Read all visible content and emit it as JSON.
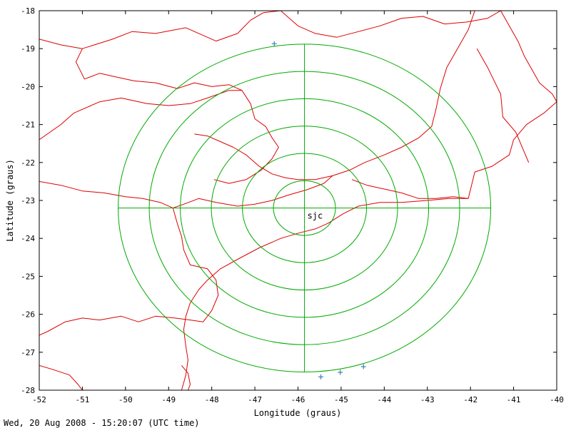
{
  "chart_data": {
    "type": "map",
    "xlabel": "Longitude (graus)",
    "ylabel": "Latitude (graus)",
    "xlim": [
      -52,
      -40
    ],
    "ylim": [
      -28,
      -18
    ],
    "x_ticks": [
      -52,
      -51,
      -50,
      -49,
      -48,
      -47,
      -46,
      -45,
      -44,
      -43,
      -42,
      -41,
      -40
    ],
    "y_ticks": [
      -18,
      -19,
      -20,
      -21,
      -22,
      -23,
      -24,
      -25,
      -26,
      -27,
      -28
    ],
    "grid": false,
    "colors": {
      "coast": "#dd0000",
      "range_rings": "#00aa00",
      "lightning": "#3b7fb5",
      "frame": "#000000"
    },
    "radar": {
      "label": "sjc",
      "lon": -45.85,
      "lat": -23.2,
      "ring_radii_deg": [
        0.72,
        1.44,
        2.16,
        2.88,
        3.6,
        4.32
      ]
    },
    "lightning_strikes": [
      {
        "lon": -46.55,
        "lat": -18.87
      },
      {
        "lon": -45.47,
        "lat": -27.65
      },
      {
        "lon": -45.02,
        "lat": -27.53
      },
      {
        "lon": -44.48,
        "lat": -27.38
      }
    ],
    "boundaries": [
      [
        [
          -52,
          -18.75
        ],
        [
          -51.5,
          -18.9
        ],
        [
          -51.0,
          -19.0
        ],
        [
          -50.3,
          -18.75
        ],
        [
          -49.85,
          -18.55
        ],
        [
          -49.3,
          -18.6
        ],
        [
          -48.6,
          -18.45
        ],
        [
          -47.9,
          -18.8
        ],
        [
          -47.4,
          -18.6
        ],
        [
          -47.1,
          -18.25
        ],
        [
          -46.8,
          -18.05
        ],
        [
          -46.4,
          -18.0
        ]
      ],
      [
        [
          -51.0,
          -19.0
        ],
        [
          -51.15,
          -19.35
        ],
        [
          -50.95,
          -19.8
        ],
        [
          -50.6,
          -19.65
        ],
        [
          -50.2,
          -19.75
        ],
        [
          -49.8,
          -19.85
        ],
        [
          -49.3,
          -19.9
        ],
        [
          -48.8,
          -20.05
        ],
        [
          -48.4,
          -19.9
        ],
        [
          -48.0,
          -20.0
        ],
        [
          -47.6,
          -19.95
        ],
        [
          -47.3,
          -20.1
        ],
        [
          -47.1,
          -20.45
        ],
        [
          -47.0,
          -20.85
        ],
        [
          -46.75,
          -21.05
        ],
        [
          -46.6,
          -21.35
        ],
        [
          -46.45,
          -21.6
        ],
        [
          -46.6,
          -21.9
        ],
        [
          -46.85,
          -22.2
        ],
        [
          -47.2,
          -22.45
        ],
        [
          -47.6,
          -22.55
        ],
        [
          -47.95,
          -22.45
        ]
      ],
      [
        [
          -52,
          -21.4
        ],
        [
          -51.5,
          -21.0
        ],
        [
          -51.2,
          -20.7
        ],
        [
          -50.6,
          -20.4
        ],
        [
          -50.1,
          -20.3
        ],
        [
          -49.5,
          -20.45
        ],
        [
          -49.0,
          -20.5
        ],
        [
          -48.5,
          -20.45
        ],
        [
          -48.1,
          -20.3
        ],
        [
          -47.6,
          -20.1
        ],
        [
          -47.3,
          -20.1
        ]
      ],
      [
        [
          -52,
          -22.5
        ],
        [
          -51.5,
          -22.6
        ],
        [
          -51.0,
          -22.75
        ],
        [
          -50.5,
          -22.8
        ],
        [
          -50.0,
          -22.9
        ],
        [
          -49.6,
          -22.95
        ],
        [
          -49.2,
          -23.05
        ],
        [
          -48.9,
          -23.2
        ],
        [
          -48.8,
          -23.6
        ],
        [
          -48.7,
          -23.95
        ],
        [
          -48.65,
          -24.3
        ],
        [
          -48.5,
          -24.7
        ],
        [
          -48.1,
          -24.8
        ],
        [
          -47.9,
          -25.1
        ],
        [
          -47.85,
          -25.5
        ],
        [
          -48.0,
          -25.9
        ],
        [
          -48.2,
          -26.2
        ],
        [
          -48.5,
          -26.15
        ],
        [
          -48.85,
          -26.1
        ],
        [
          -49.3,
          -26.05
        ],
        [
          -49.7,
          -26.2
        ],
        [
          -50.1,
          -26.05
        ],
        [
          -50.6,
          -26.15
        ],
        [
          -51.0,
          -26.1
        ],
        [
          -51.4,
          -26.2
        ],
        [
          -51.8,
          -26.45
        ],
        [
          -52,
          -26.55
        ]
      ],
      [
        [
          -52,
          -27.35
        ],
        [
          -51.7,
          -27.45
        ],
        [
          -51.3,
          -27.6
        ],
        [
          -51.1,
          -27.85
        ],
        [
          -51.0,
          -28.0
        ]
      ],
      [
        [
          -46.4,
          -18.0
        ],
        [
          -46.0,
          -18.4
        ],
        [
          -45.6,
          -18.6
        ],
        [
          -45.1,
          -18.7
        ],
        [
          -44.6,
          -18.55
        ],
        [
          -44.1,
          -18.4
        ],
        [
          -43.6,
          -18.2
        ],
        [
          -43.1,
          -18.15
        ],
        [
          -42.6,
          -18.35
        ],
        [
          -42.1,
          -18.3
        ],
        [
          -41.6,
          -18.2
        ],
        [
          -41.3,
          -18.0
        ]
      ],
      [
        [
          -41.3,
          -18.0
        ],
        [
          -41.1,
          -18.4
        ],
        [
          -40.9,
          -18.8
        ],
        [
          -40.75,
          -19.2
        ],
        [
          -40.6,
          -19.5
        ],
        [
          -40.4,
          -19.9
        ],
        [
          -40.1,
          -20.2
        ],
        [
          -40.0,
          -20.4
        ]
      ],
      [
        [
          -41.9,
          -18.0
        ],
        [
          -42.05,
          -18.5
        ],
        [
          -42.3,
          -19.0
        ],
        [
          -42.55,
          -19.5
        ],
        [
          -42.7,
          -20.05
        ],
        [
          -42.8,
          -20.6
        ],
        [
          -42.9,
          -21.05
        ],
        [
          -43.2,
          -21.35
        ],
        [
          -43.6,
          -21.6
        ],
        [
          -44.0,
          -21.8
        ],
        [
          -44.45,
          -22.0
        ],
        [
          -44.8,
          -22.2
        ],
        [
          -45.2,
          -22.35
        ],
        [
          -45.6,
          -22.45
        ],
        [
          -46.0,
          -22.45
        ],
        [
          -46.3,
          -22.4
        ],
        [
          -46.6,
          -22.3
        ],
        [
          -46.9,
          -22.1
        ],
        [
          -47.2,
          -21.8
        ],
        [
          -47.5,
          -21.6
        ],
        [
          -47.8,
          -21.45
        ],
        [
          -48.1,
          -21.3
        ],
        [
          -48.4,
          -21.25
        ]
      ],
      [
        [
          -44.75,
          -22.45
        ],
        [
          -44.4,
          -22.6
        ],
        [
          -44.0,
          -22.7
        ],
        [
          -43.6,
          -22.8
        ],
        [
          -43.2,
          -22.95
        ],
        [
          -42.8,
          -22.95
        ],
        [
          -42.4,
          -22.9
        ],
        [
          -42.05,
          -22.95
        ]
      ],
      [
        [
          -45.2,
          -22.35
        ],
        [
          -45.4,
          -22.55
        ],
        [
          -45.8,
          -22.72
        ],
        [
          -46.2,
          -22.85
        ],
        [
          -46.6,
          -23.0
        ],
        [
          -47.0,
          -23.1
        ],
        [
          -47.4,
          -23.15
        ],
        [
          -47.9,
          -23.05
        ],
        [
          -48.3,
          -22.95
        ],
        [
          -48.65,
          -23.1
        ],
        [
          -48.9,
          -23.2
        ]
      ],
      [
        [
          -40.0,
          -20.4
        ],
        [
          -40.3,
          -20.7
        ],
        [
          -40.7,
          -21.0
        ],
        [
          -41.0,
          -21.4
        ],
        [
          -41.1,
          -21.8
        ],
        [
          -41.5,
          -22.1
        ],
        [
          -41.9,
          -22.25
        ],
        [
          -42.05,
          -22.95
        ]
      ],
      [
        [
          -40.65,
          -22.0
        ],
        [
          -40.95,
          -21.2
        ],
        [
          -41.25,
          -20.8
        ],
        [
          -41.3,
          -20.2
        ],
        [
          -41.6,
          -19.5
        ],
        [
          -41.85,
          -19.0
        ]
      ],
      [
        [
          -42.05,
          -22.95
        ],
        [
          -42.5,
          -22.95
        ],
        [
          -43.0,
          -23.0
        ],
        [
          -43.6,
          -23.05
        ],
        [
          -44.1,
          -23.05
        ],
        [
          -44.6,
          -23.15
        ],
        [
          -44.95,
          -23.35
        ],
        [
          -45.3,
          -23.6
        ],
        [
          -45.6,
          -23.75
        ],
        [
          -45.95,
          -23.85
        ],
        [
          -46.4,
          -24.0
        ],
        [
          -46.9,
          -24.25
        ],
        [
          -47.4,
          -24.55
        ],
        [
          -47.8,
          -24.8
        ],
        [
          -48.1,
          -25.1
        ],
        [
          -48.3,
          -25.35
        ],
        [
          -48.5,
          -25.7
        ],
        [
          -48.6,
          -26.05
        ],
        [
          -48.65,
          -26.4
        ],
        [
          -48.6,
          -26.85
        ],
        [
          -48.55,
          -27.2
        ],
        [
          -48.6,
          -27.6
        ],
        [
          -48.7,
          -28.0
        ]
      ],
      [
        [
          -48.7,
          -27.35
        ],
        [
          -48.55,
          -27.55
        ],
        [
          -48.5,
          -27.85
        ],
        [
          -48.55,
          -28.0
        ]
      ]
    ]
  },
  "footer": {
    "timestamp": "Wed, 20 Aug 2008 - 15:20:07 (UTC time)"
  }
}
